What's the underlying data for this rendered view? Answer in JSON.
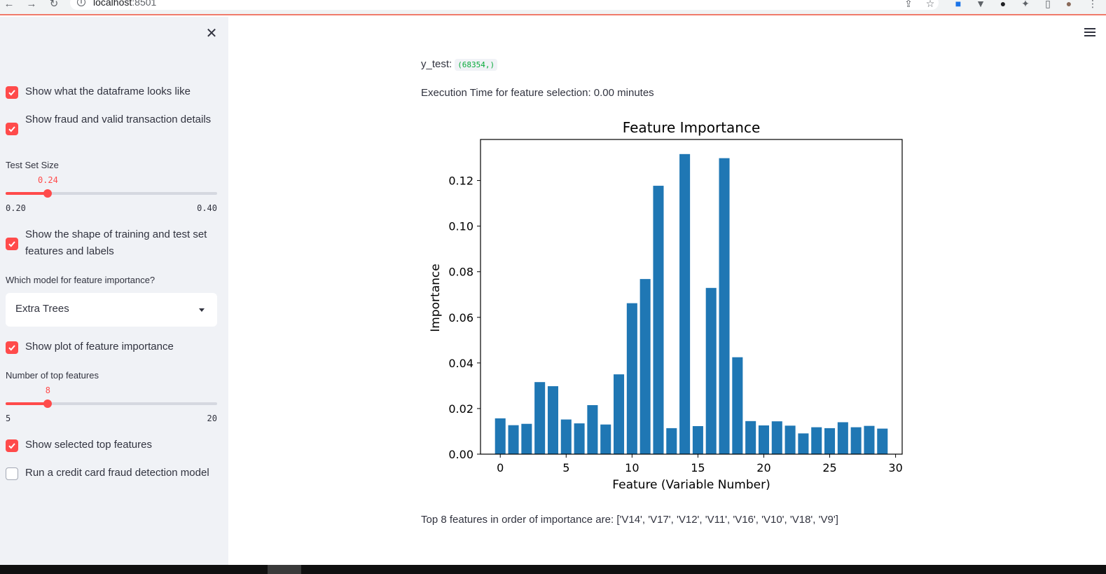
{
  "browser": {
    "url_host": "localhost",
    "url_port": ":8501"
  },
  "sidebar": {
    "checkboxes": [
      {
        "label": "Show what the dataframe looks like",
        "checked": true
      },
      {
        "label": "Show fraud and valid transaction details",
        "checked": true
      },
      {
        "label": "Show the shape of training and test set features and labels",
        "checked": true
      },
      {
        "label": "Show plot of feature importance",
        "checked": true
      },
      {
        "label": "Show selected top features",
        "checked": true
      },
      {
        "label": "Run a credit card fraud detection model",
        "checked": false
      }
    ],
    "test_size": {
      "label": "Test Set Size",
      "value": "0.24",
      "min": "0.20",
      "max": "0.40",
      "fraction": 0.2
    },
    "model_select": {
      "label": "Which model for feature importance?",
      "value": "Extra Trees"
    },
    "top_features": {
      "label": "Number of top features",
      "value": "8",
      "min": "5",
      "max": "20",
      "fraction": 0.2
    }
  },
  "main": {
    "y_test_label": "y_test:",
    "y_test_shape": "(68354,)",
    "execution_time": "Execution Time for feature selection: 0.00 minutes",
    "top_features_text": "Top 8 features in order of importance are: ['V14', 'V17', 'V12', 'V11', 'V16', 'V10', 'V18', 'V9']"
  },
  "colors": {
    "accent": "#ff4b4b",
    "bar": "#1f77b4",
    "sidebar_bg": "#f0f2f6"
  },
  "chart_data": {
    "type": "bar",
    "title": "Feature Importance",
    "xlabel": "Feature (Variable Number)",
    "ylabel": "Importance",
    "xlim": [
      -1.5,
      30.5
    ],
    "ylim": [
      0,
      0.138
    ],
    "xticks": [
      "0",
      "5",
      "10",
      "15",
      "20",
      "25",
      "30"
    ],
    "yticks": [
      "0.00",
      "0.02",
      "0.04",
      "0.06",
      "0.08",
      "0.10",
      "0.12"
    ],
    "x": [
      0,
      1,
      2,
      3,
      4,
      5,
      6,
      7,
      8,
      9,
      10,
      11,
      12,
      13,
      14,
      15,
      16,
      17,
      18,
      19,
      20,
      21,
      22,
      23,
      24,
      25,
      26,
      27,
      28,
      29
    ],
    "values": [
      0.0157,
      0.0127,
      0.0133,
      0.0316,
      0.0298,
      0.0152,
      0.0135,
      0.0215,
      0.013,
      0.035,
      0.0662,
      0.0768,
      0.1177,
      0.0114,
      0.1316,
      0.0123,
      0.0729,
      0.1298,
      0.0425,
      0.0145,
      0.0126,
      0.0144,
      0.0125,
      0.0091,
      0.0118,
      0.0114,
      0.014,
      0.0118,
      0.0124,
      0.0112
    ],
    "grid": false
  }
}
